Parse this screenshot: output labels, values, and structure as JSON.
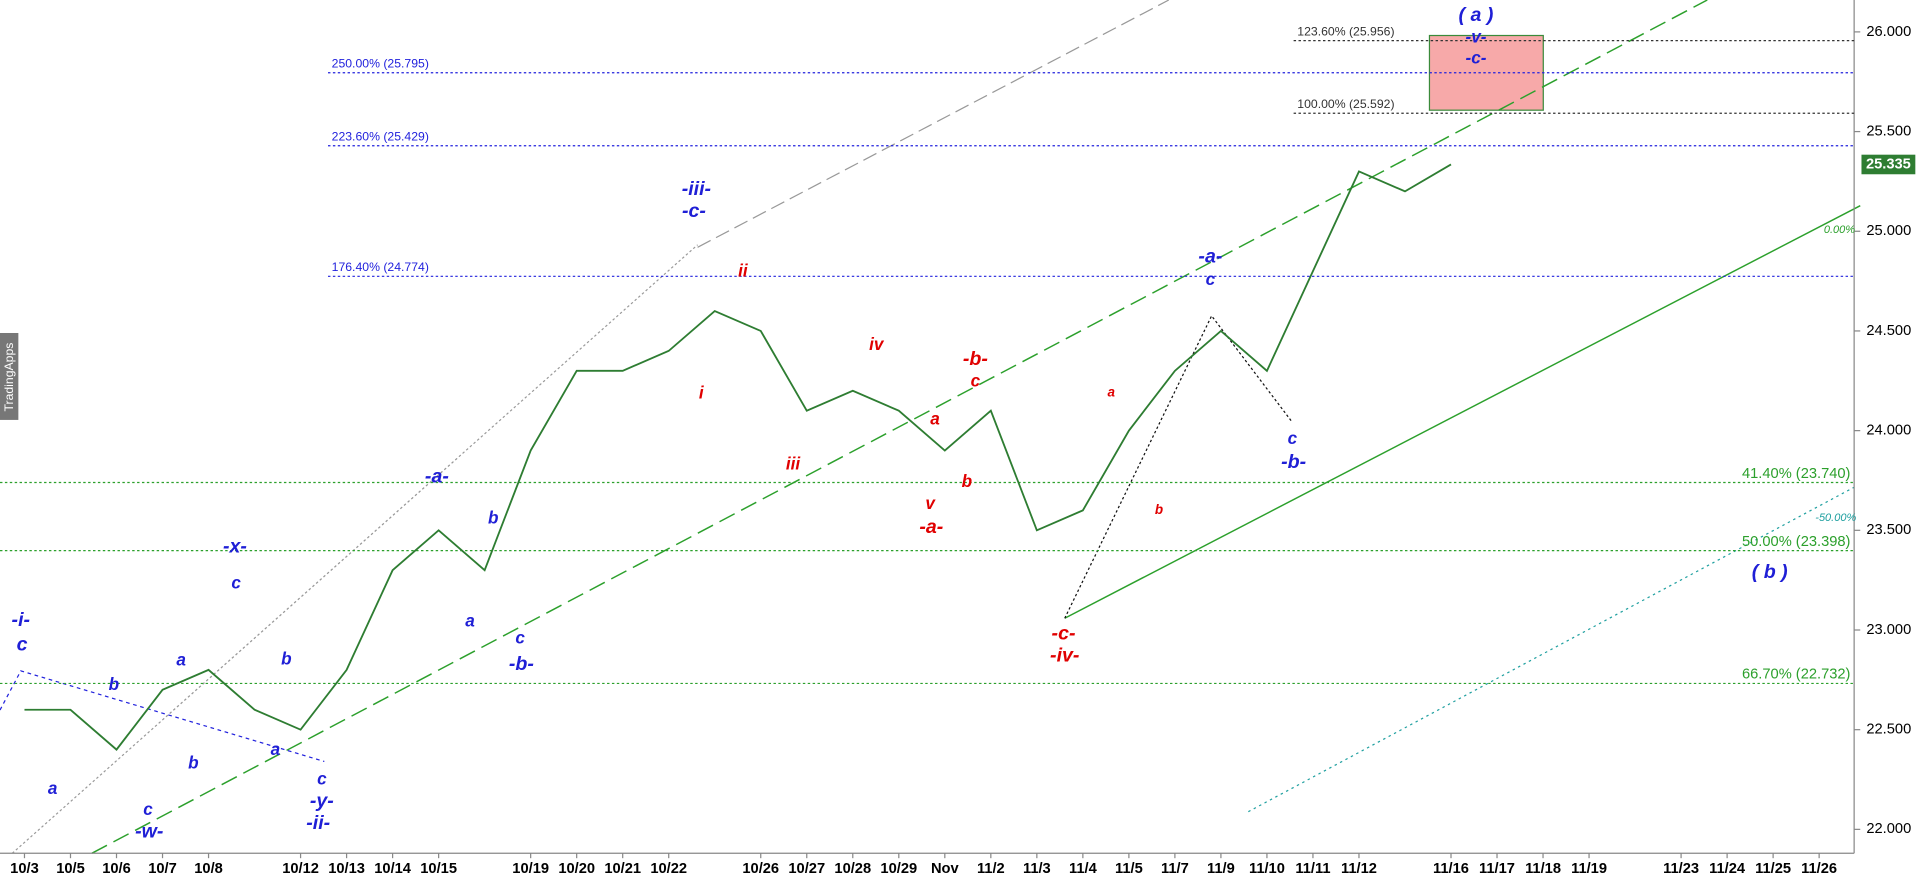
{
  "chart_data": {
    "type": "line",
    "categories": [
      "10/3",
      "10/5",
      "10/6",
      "10/7",
      "10/8",
      null,
      "10/12",
      "10/13",
      "10/14",
      "10/15",
      null,
      "10/19",
      "10/20",
      "10/21",
      "10/22",
      null,
      "10/26",
      "10/27",
      "10/28",
      "10/29",
      "Nov",
      "11/2",
      "11/3",
      "11/4",
      "11/5",
      "11/7",
      "11/9",
      "11/10",
      "11/11",
      "11/12",
      null,
      "11/16",
      "11/17",
      "11/18",
      "11/19",
      null,
      "11/23",
      "11/24",
      "11/25",
      "11/26"
    ],
    "series": [
      {
        "color": "#2e7d32",
        "values": [
          22.6,
          22.6,
          22.4,
          22.7,
          22.8,
          22.6,
          22.5,
          22.8,
          23.3,
          23.5,
          23.3,
          23.9,
          24.3,
          24.3,
          24.4,
          24.6,
          24.5,
          24.1,
          24.2,
          24.1,
          23.9,
          24.1,
          23.5,
          23.6,
          24.0,
          24.3,
          24.5,
          24.3,
          24.8,
          25.3,
          25.2,
          25.335,
          null,
          null,
          null,
          null,
          null,
          null,
          null,
          null
        ]
      }
    ],
    "ylim": [
      21.88,
      26.16
    ],
    "yticks": [
      {
        "value": 22,
        "label": "22.000"
      },
      {
        "value": 22.5,
        "label": "22.500"
      },
      {
        "value": 23,
        "label": "23.000"
      },
      {
        "value": 23.5,
        "label": "23.500"
      },
      {
        "value": 24,
        "label": "24.000"
      },
      {
        "value": 24.5,
        "label": "24.500"
      },
      {
        "value": 25,
        "label": "25.000"
      },
      {
        "value": 25.5,
        "label": "25.500"
      },
      {
        "value": 26,
        "label": "26.000"
      }
    ],
    "levels": [
      {
        "label": "250.00% (25.795)",
        "value": 25.795,
        "color": "#2222dd"
      },
      {
        "label": "223.60% (25.429)",
        "value": 25.429,
        "color": "#2222dd"
      },
      {
        "label": "176.40% (24.774)",
        "value": 24.774,
        "color": "#2222dd"
      },
      {
        "label": "123.60% (25.956)",
        "value": 25.956,
        "color": "#333333"
      },
      {
        "label": "100.00% (25.592)",
        "value": 25.592,
        "color": "#333333"
      },
      {
        "label": "41.40% (23.740)",
        "value": 23.74,
        "color": "#2ca02c"
      },
      {
        "label": "50.00% (23.398)",
        "value": 23.398,
        "color": "#2ca02c"
      },
      {
        "label": "66.70% (22.732)",
        "value": 22.732,
        "color": "#2ca02c"
      }
    ],
    "annotations": [
      {
        "text": "-i-",
        "color": "#1f1fd6"
      },
      {
        "text": "c",
        "color": "#1f1fd6"
      },
      {
        "text": "a",
        "color": "#1f1fd6"
      },
      {
        "text": "b",
        "color": "#1f1fd6"
      },
      {
        "text": "c",
        "color": "#1f1fd6"
      },
      {
        "text": "-w-",
        "color": "#1f1fd6"
      },
      {
        "text": "a",
        "color": "#1f1fd6"
      },
      {
        "text": "b",
        "color": "#1f1fd6"
      },
      {
        "text": "-x-",
        "color": "#1f1fd6"
      },
      {
        "text": "c",
        "color": "#1f1fd6"
      },
      {
        "text": "b",
        "color": "#1f1fd6"
      },
      {
        "text": "a",
        "color": "#1f1fd6"
      },
      {
        "text": "c",
        "color": "#1f1fd6"
      },
      {
        "text": "-y-",
        "color": "#1f1fd6"
      },
      {
        "text": "-ii-",
        "color": "#1f1fd6"
      },
      {
        "text": "-a-",
        "color": "#1f1fd6"
      },
      {
        "text": "b",
        "color": "#1f1fd6"
      },
      {
        "text": "a",
        "color": "#1f1fd6"
      },
      {
        "text": "c",
        "color": "#1f1fd6"
      },
      {
        "text": "-b-",
        "color": "#1f1fd6"
      },
      {
        "text": "-iii-",
        "color": "#1f1fd6"
      },
      {
        "text": "-c-",
        "color": "#1f1fd6"
      },
      {
        "text": "-a-",
        "color": "#1f1fd6"
      },
      {
        "text": "c",
        "color": "#1f1fd6"
      },
      {
        "text": "c",
        "color": "#1f1fd6"
      },
      {
        "text": "-b-",
        "color": "#1f1fd6"
      },
      {
        "text": "( a )",
        "color": "#1f1fd6"
      },
      {
        "text": "-v-",
        "color": "#1f1fd6"
      },
      {
        "text": "-c-",
        "color": "#1f1fd6"
      },
      {
        "text": "( b )",
        "color": "#1f1fd6"
      },
      {
        "text": "ii",
        "color": "#e00000"
      },
      {
        "text": "i",
        "color": "#e00000"
      },
      {
        "text": "iii",
        "color": "#e00000"
      },
      {
        "text": "iv",
        "color": "#e00000"
      },
      {
        "text": "-b-",
        "color": "#e00000"
      },
      {
        "text": "c",
        "color": "#e00000"
      },
      {
        "text": "a",
        "color": "#e00000"
      },
      {
        "text": "v",
        "color": "#e00000"
      },
      {
        "text": "-a-",
        "color": "#e00000"
      },
      {
        "text": "b",
        "color": "#e00000"
      },
      {
        "text": "-c-",
        "color": "#e00000"
      },
      {
        "text": "-iv-",
        "color": "#e00000"
      },
      {
        "text": "a",
        "color": "#e00000"
      },
      {
        "text": "b",
        "color": "#e00000"
      },
      {
        "text": "0.00%",
        "color": "#2ca02c"
      },
      {
        "text": "-50.00%",
        "color": "#20a0a0"
      }
    ],
    "watermark": "TradingApps",
    "grid": false
  }
}
